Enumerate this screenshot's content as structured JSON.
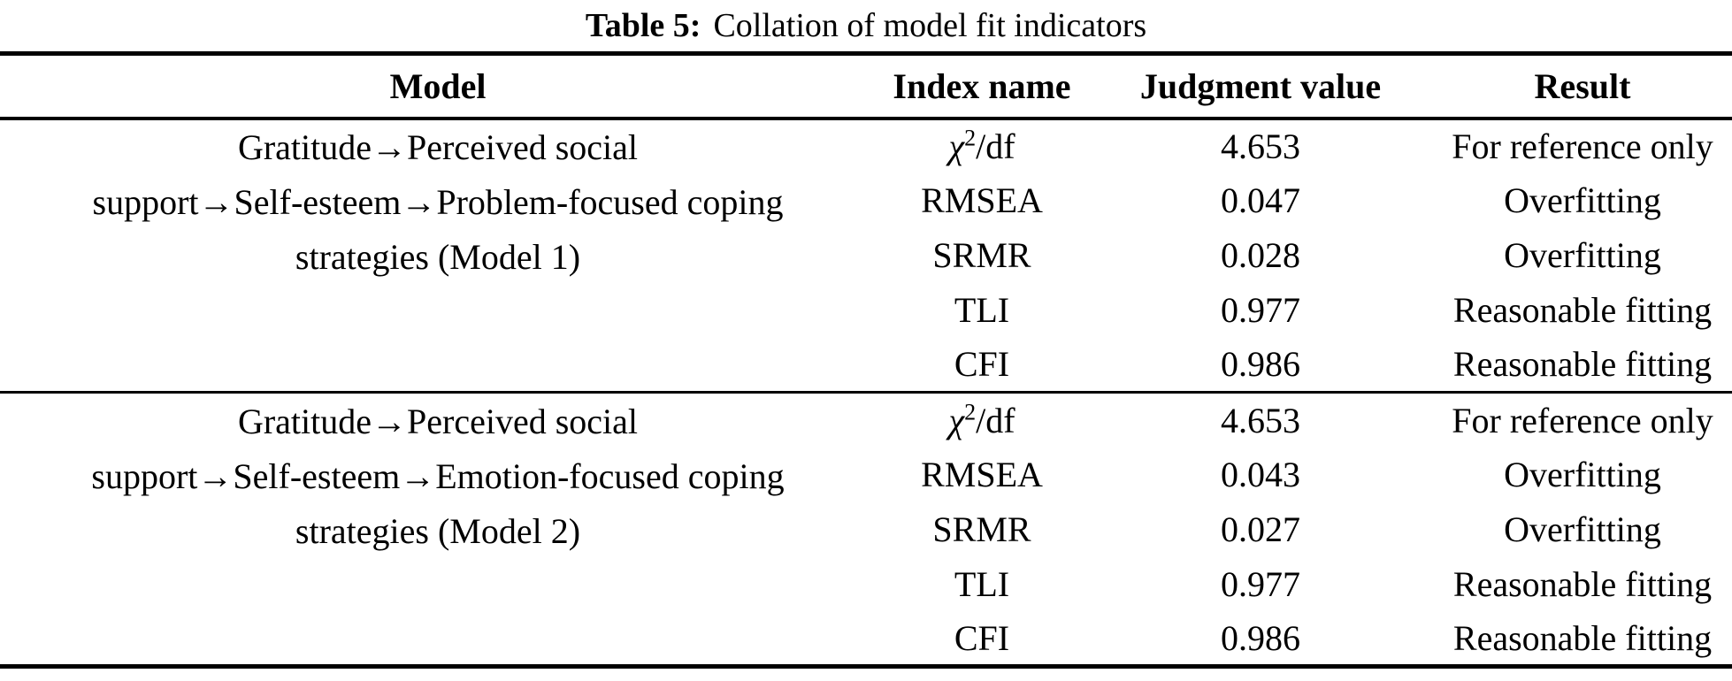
{
  "colors": {
    "text": "#000000",
    "background": "#ffffff",
    "rule": "#000000"
  },
  "caption": {
    "label": "Table 5:",
    "text": "Collation of model fit indicators"
  },
  "columns": {
    "model": "Model",
    "index_name": "Index name",
    "judgment_value": "Judgment value",
    "result": "Result"
  },
  "table_data": {
    "type": "table",
    "blocks": [
      {
        "model_lines": [
          "Gratitude→Perceived social",
          "support→Self-esteem→Problem-focused coping",
          "strategies (Model 1)"
        ],
        "rows": [
          {
            "index_chi": "χ",
            "index_sup": "2",
            "index_rest": "/df",
            "value": "4.653",
            "result": "For reference only"
          },
          {
            "index": "RMSEA",
            "value": "0.047",
            "result": "Overfitting"
          },
          {
            "index": "SRMR",
            "value": "0.028",
            "result": "Overfitting"
          },
          {
            "index": "TLI",
            "value": "0.977",
            "result": "Reasonable fitting"
          },
          {
            "index": "CFI",
            "value": "0.986",
            "result": "Reasonable fitting"
          }
        ]
      },
      {
        "model_lines": [
          "Gratitude→Perceived social",
          "support→Self-esteem→Emotion-focused coping",
          "strategies (Model 2)"
        ],
        "rows": [
          {
            "index_chi": "χ",
            "index_sup": "2",
            "index_rest": "/df",
            "value": "4.653",
            "result": "For reference only"
          },
          {
            "index": "RMSEA",
            "value": "0.043",
            "result": "Overfitting"
          },
          {
            "index": "SRMR",
            "value": "0.027",
            "result": "Overfitting"
          },
          {
            "index": "TLI",
            "value": "0.977",
            "result": "Reasonable fitting"
          },
          {
            "index": "CFI",
            "value": "0.986",
            "result": "Reasonable fitting"
          }
        ]
      }
    ]
  }
}
